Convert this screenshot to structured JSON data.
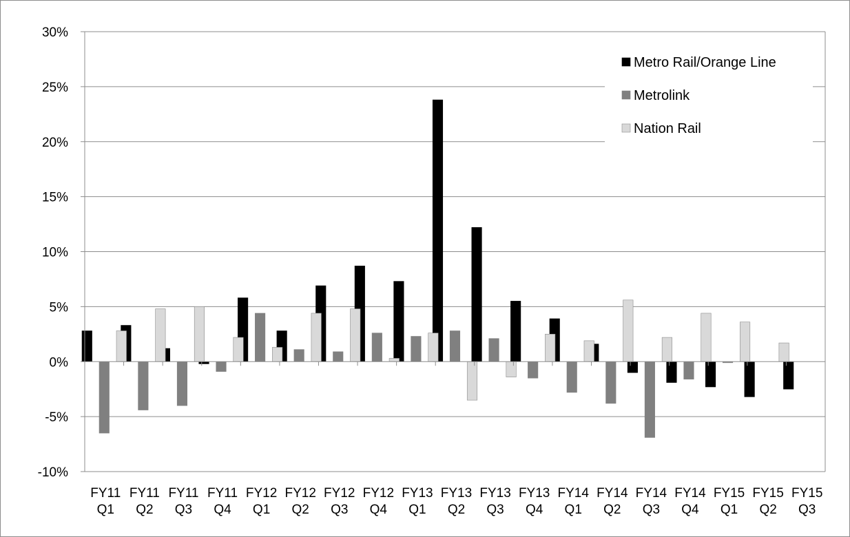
{
  "chart_data": {
    "type": "bar",
    "title": "",
    "xlabel": "",
    "ylabel": "",
    "ylim": [
      -10,
      30
    ],
    "yticks": [
      -10,
      -5,
      0,
      5,
      10,
      15,
      20,
      25,
      30
    ],
    "ytick_labels": [
      "-10%",
      "-5%",
      "0%",
      "5%",
      "10%",
      "15%",
      "20%",
      "25%",
      "30%"
    ],
    "grid": true,
    "legend_position": "top-right",
    "categories": [
      [
        "FY11",
        "Q1"
      ],
      [
        "FY11",
        "Q2"
      ],
      [
        "FY11",
        "Q3"
      ],
      [
        "FY11",
        "Q4"
      ],
      [
        "FY12",
        "Q1"
      ],
      [
        "FY12",
        "Q2"
      ],
      [
        "FY12",
        "Q3"
      ],
      [
        "FY12",
        "Q4"
      ],
      [
        "FY13",
        "Q1"
      ],
      [
        "FY13",
        "Q2"
      ],
      [
        "FY13",
        "Q3"
      ],
      [
        "FY13",
        "Q4"
      ],
      [
        "FY14",
        "Q1"
      ],
      [
        "FY14",
        "Q2"
      ],
      [
        "FY14",
        "Q3"
      ],
      [
        "FY14",
        "Q4"
      ],
      [
        "FY15",
        "Q1"
      ],
      [
        "FY15",
        "Q2"
      ],
      [
        "FY15",
        "Q3"
      ]
    ],
    "series": [
      {
        "name": "Metro Rail/Orange Line",
        "color": "#000000",
        "values": [
          2.8,
          3.3,
          1.2,
          -0.2,
          5.8,
          2.8,
          6.9,
          8.7,
          7.3,
          23.8,
          12.2,
          5.5,
          3.9,
          1.6,
          -1.0,
          -1.9,
          -2.3,
          -3.2,
          -2.5
        ]
      },
      {
        "name": "Metrolink",
        "color": "#808080",
        "values": [
          -6.5,
          -4.4,
          -4.0,
          -0.9,
          4.4,
          1.1,
          0.9,
          2.6,
          2.3,
          2.8,
          2.1,
          -1.5,
          -2.8,
          -3.8,
          -6.9,
          -1.6,
          -0.1,
          null,
          null
        ]
      },
      {
        "name": "Nation Rail",
        "color": "#d9d9d9",
        "values": [
          2.8,
          4.8,
          5.0,
          2.2,
          1.3,
          4.4,
          4.8,
          0.3,
          2.6,
          -3.5,
          -1.4,
          2.5,
          1.9,
          5.6,
          2.2,
          4.4,
          3.6,
          1.7,
          null
        ]
      }
    ]
  }
}
